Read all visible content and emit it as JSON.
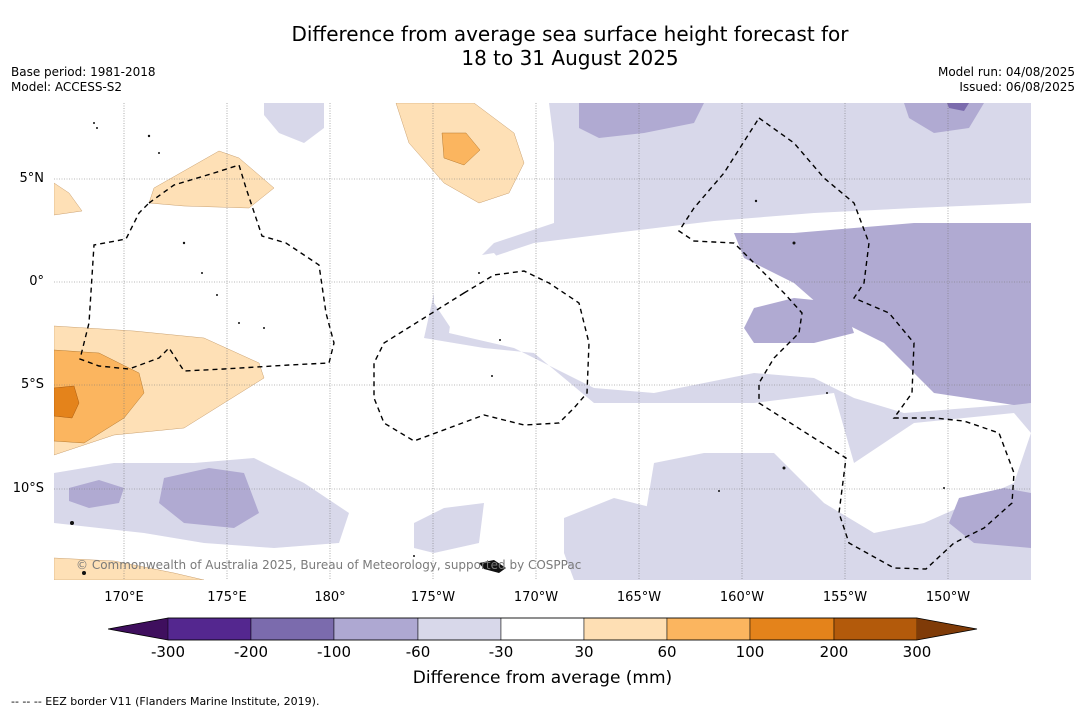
{
  "title_line1": "Difference from average sea surface height forecast for",
  "title_line2": "18 to 31 August 2025",
  "base_period": "Base period: 1981-2018",
  "model": "Model: ACCESS-S2",
  "model_run": "Model run: 04/08/2025",
  "issued": "Issued: 06/08/2025",
  "lat_labels": [
    "5°N",
    "0°",
    "5°S",
    "10°S"
  ],
  "lon_labels": [
    "170°E",
    "175°E",
    "180°",
    "175°W",
    "170°W",
    "165°W",
    "160°W",
    "155°W",
    "150°W"
  ],
  "copyright": "© Commonwealth of Australia 2025, Bureau of Meteorology, supported by COSPPac",
  "colorbar": {
    "ticks": [
      "-300",
      "-200",
      "-100",
      "-60",
      "-30",
      "30",
      "60",
      "100",
      "200",
      "300"
    ],
    "colors": [
      "#3f0f5e",
      "#54278f",
      "#7b6bad",
      "#aea8d2",
      "#d8d8ea",
      "#ffffff",
      "#fedfb4",
      "#fbb55f",
      "#e4831b",
      "#b35a0b",
      "#7f3b08"
    ],
    "label": "Difference from average (mm)"
  },
  "footer": "-- -- -- EEZ border V11 (Flanders Marine Institute, 2019).",
  "map_colors": {
    "light_purple": "#d8d8ea",
    "mid_purple": "#b0aad2",
    "dark_purple": "#7b6bad",
    "light_orange": "#fee0b6",
    "mid_orange": "#fbb55f",
    "dark_orange": "#e4831b"
  }
}
